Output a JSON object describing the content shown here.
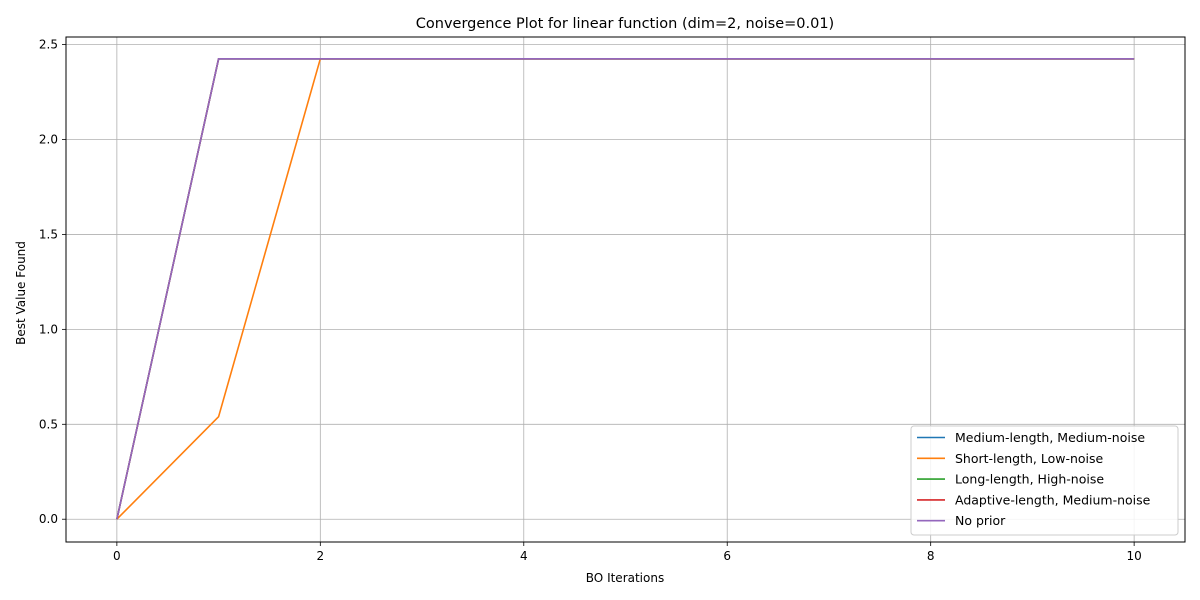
{
  "chart_data": {
    "type": "line",
    "title": "Convergence Plot for linear function (dim=2, noise=0.01)",
    "xlabel": "BO Iterations",
    "ylabel": "Best Value Found",
    "xlim": [
      -0.5,
      10.5
    ],
    "ylim": [
      -0.12,
      2.54
    ],
    "xticks": [
      0,
      2,
      4,
      6,
      8,
      10
    ],
    "yticks": [
      0.0,
      0.5,
      1.0,
      1.5,
      2.0,
      2.5
    ],
    "xtick_labels": [
      "0",
      "2",
      "4",
      "6",
      "8",
      "10"
    ],
    "ytick_labels": [
      "0.0",
      "0.5",
      "1.0",
      "1.5",
      "2.0",
      "2.5"
    ],
    "grid": true,
    "legend_position": "lower-right",
    "x": [
      0,
      1,
      2,
      3,
      4,
      5,
      6,
      7,
      8,
      9,
      10
    ],
    "series": [
      {
        "name": "Medium-length, Medium-noise",
        "color": "#1f77b4",
        "values": [
          0,
          2.425,
          2.425,
          2.425,
          2.425,
          2.425,
          2.425,
          2.425,
          2.425,
          2.425,
          2.425
        ]
      },
      {
        "name": "Short-length, Low-noise",
        "color": "#ff7f0e",
        "values": [
          0,
          0.54,
          2.425,
          2.425,
          2.425,
          2.425,
          2.425,
          2.425,
          2.425,
          2.425,
          2.425
        ]
      },
      {
        "name": "Long-length, High-noise",
        "color": "#2ca02c",
        "values": [
          0,
          2.425,
          2.425,
          2.425,
          2.425,
          2.425,
          2.425,
          2.425,
          2.425,
          2.425,
          2.425
        ]
      },
      {
        "name": "Adaptive-length, Medium-noise",
        "color": "#d62728",
        "values": [
          0,
          2.425,
          2.425,
          2.425,
          2.425,
          2.425,
          2.425,
          2.425,
          2.425,
          2.425,
          2.425
        ]
      },
      {
        "name": "No prior",
        "color": "#9467bd",
        "values": [
          0,
          2.425,
          2.425,
          2.425,
          2.425,
          2.425,
          2.425,
          2.425,
          2.425,
          2.425,
          2.425
        ]
      }
    ]
  }
}
